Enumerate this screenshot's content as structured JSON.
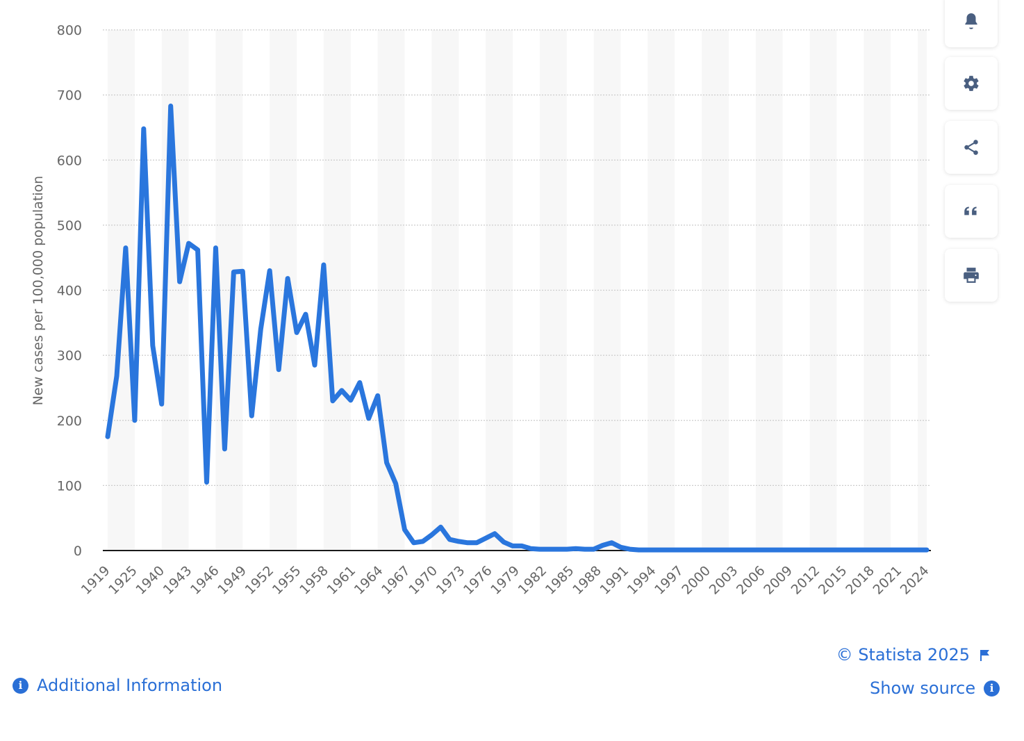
{
  "chart_data": {
    "type": "line",
    "title": "",
    "xlabel": "",
    "ylabel": "New cases per 100,000 population",
    "ylim": [
      0,
      800
    ],
    "yticks": [
      0,
      100,
      200,
      300,
      400,
      500,
      600,
      700,
      800
    ],
    "grid": true,
    "color": "#2a76dd",
    "x_tick_labels": [
      "1919",
      "1925",
      "1940",
      "1943",
      "1946",
      "1949",
      "1952",
      "1955",
      "1958",
      "1961",
      "1964",
      "1967",
      "1970",
      "1973",
      "1976",
      "1979",
      "1982",
      "1985",
      "1988",
      "1991",
      "1994",
      "1997",
      "2000",
      "2003",
      "2006",
      "2009",
      "2012",
      "2015",
      "2018",
      "2021",
      "2024"
    ],
    "series": [
      {
        "values": [
          175,
          268,
          465,
          200,
          648,
          315,
          225,
          683,
          413,
          472,
          462,
          105,
          465,
          156,
          428,
          429,
          207,
          340,
          430,
          278,
          418,
          335,
          363,
          285,
          439,
          230,
          246,
          231,
          258,
          203,
          238,
          135,
          103,
          32,
          12,
          14,
          24,
          36,
          17,
          14,
          12,
          12,
          19,
          26,
          13,
          7,
          7,
          3,
          2,
          2,
          2,
          2,
          3,
          2,
          2,
          8,
          12,
          5,
          2,
          1,
          1,
          1,
          1,
          1,
          1,
          1,
          1,
          1,
          1,
          1,
          1,
          1,
          1,
          1,
          1,
          1,
          1,
          1,
          1,
          1,
          1,
          1,
          1,
          1,
          1,
          1,
          1,
          1,
          1,
          1,
          1,
          1
        ]
      }
    ]
  },
  "toolbar": {
    "buttons": [
      {
        "name": "notification-button",
        "icon": "bell-icon"
      },
      {
        "name": "settings-button",
        "icon": "gear-icon"
      },
      {
        "name": "share-button",
        "icon": "share-icon"
      },
      {
        "name": "cite-button",
        "icon": "quote-icon"
      },
      {
        "name": "print-button",
        "icon": "printer-icon"
      }
    ]
  },
  "footer": {
    "additional_info": "Additional Information",
    "copyright": "© Statista 2025",
    "show_source": "Show source"
  },
  "colors": {
    "accent": "#2a6fd6",
    "line": "#2a76dd",
    "band": "#f7f7f7",
    "grid": "#cccccc",
    "axis_text": "#666666",
    "toolbar_icon": "#4a5f80"
  }
}
